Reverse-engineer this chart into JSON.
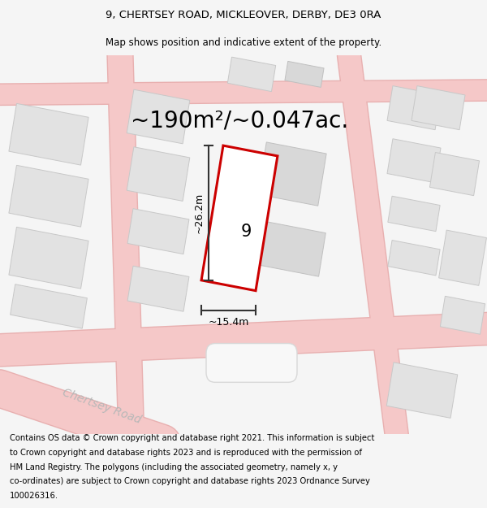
{
  "title": "9, CHERTSEY ROAD, MICKLEOVER, DERBY, DE3 0RA",
  "subtitle": "Map shows position and indicative extent of the property.",
  "area_text": "~190m²/~0.047ac.",
  "width_label": "~15.4m",
  "height_label": "~26.2m",
  "number_label": "9",
  "road_label": "Chertsey Road",
  "footer_lines": [
    "Contains OS data © Crown copyright and database right 2021. This information is subject",
    "to Crown copyright and database rights 2023 and is reproduced with the permission of",
    "HM Land Registry. The polygons (including the associated geometry, namely x, y",
    "co-ordinates) are subject to Crown copyright and database rights 2023 Ordnance Survey",
    "100026316."
  ],
  "bg_color": "#f5f5f5",
  "map_bg": "#ffffff",
  "building_fill": "#e2e2e2",
  "building_edge": "#c8c8c8",
  "plot_outline": "#cc0000",
  "plot_fill": "#ffffff",
  "road_color": "#f5c8c8",
  "road_edge": "#e8b0b0",
  "dim_color": "#333333",
  "road_label_color": "#b8b8b8",
  "title_fontsize": 9.5,
  "subtitle_fontsize": 8.5,
  "area_fontsize": 20,
  "label_fontsize": 9,
  "number_fontsize": 15,
  "footer_fontsize": 7.2,
  "road_label_fontsize": 10
}
